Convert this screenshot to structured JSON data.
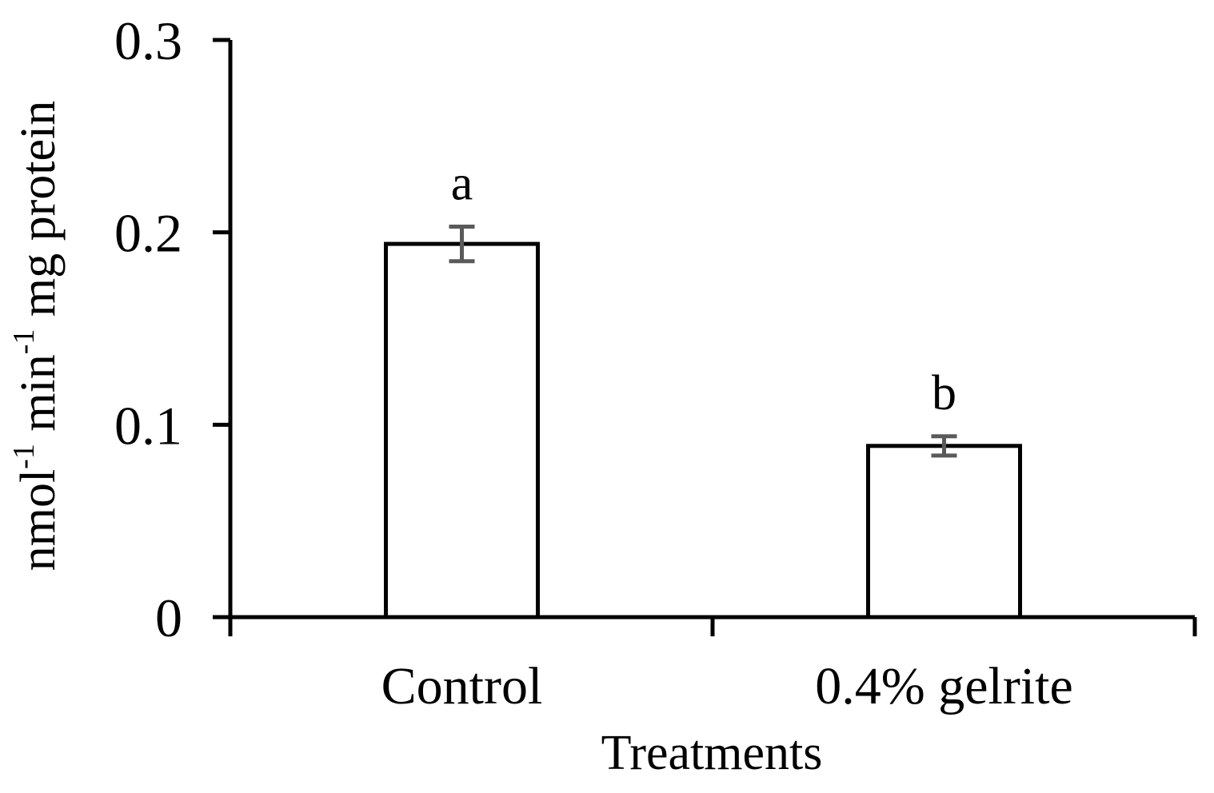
{
  "chart_data": {
    "type": "bar",
    "title": "",
    "xlabel": "Treatments",
    "ylabel": {
      "parts": [
        {
          "text": "nmol",
          "sup": false
        },
        {
          "text": "-1",
          "sup": true
        },
        {
          "text": " min",
          "sup": false
        },
        {
          "text": "-1",
          "sup": true
        },
        {
          "text": " mg protein",
          "sup": false
        }
      ]
    },
    "ylim": [
      0,
      0.3
    ],
    "yticks": [
      {
        "value": 0,
        "label": "0"
      },
      {
        "value": 0.1,
        "label": "0.1"
      },
      {
        "value": 0.2,
        "label": "0.2"
      },
      {
        "value": 0.3,
        "label": "0.3"
      }
    ],
    "categories": [
      "Control",
      "0.4% gelrite"
    ],
    "values": [
      0.194,
      0.089
    ],
    "errors": [
      0.009,
      0.005
    ],
    "significance": [
      "a",
      "b"
    ],
    "grid": false,
    "legend": "none"
  },
  "colors": {
    "bar_fill": "#ffffff",
    "bar_stroke": "#000000",
    "error_bar": "#5a5a5a",
    "axis": "#000000"
  }
}
